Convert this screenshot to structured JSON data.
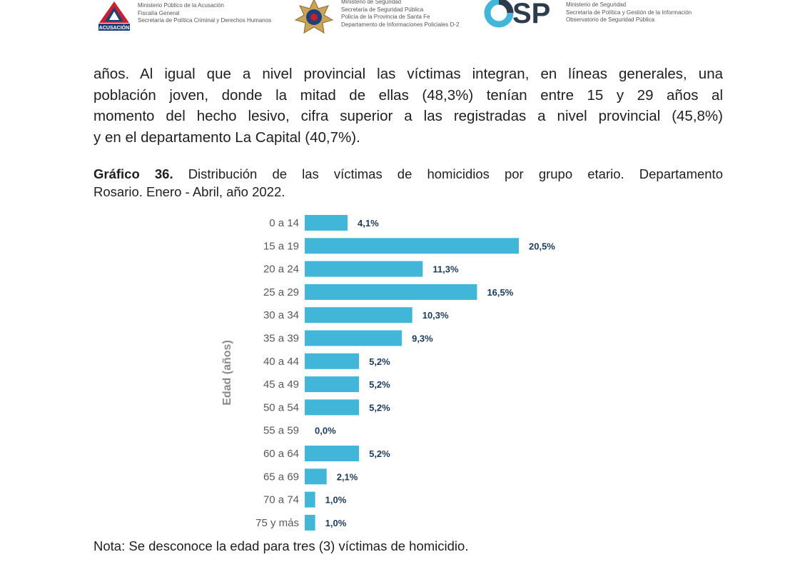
{
  "header": {
    "org1": {
      "logo_text": "ACUSACIÓN",
      "lines": [
        "Ministerio Público de la Acusación",
        "Fiscalía General",
        "Secretaría de Política Criminal y Derechos Humanos"
      ]
    },
    "org2": {
      "lines": [
        "Ministerio de Seguridad",
        "Secretaría de Seguridad Pública",
        "Policía de la Provincia de Santa Fe",
        "Departamento de Informaciones Policiales D-2"
      ]
    },
    "org3": {
      "logo_text": "OSP",
      "lines": [
        "Ministerio de Seguridad",
        "Secretaría de Política y Gestión de la Información",
        "Observatorio de Seguridad Pública"
      ]
    }
  },
  "paragraph": {
    "lines": [
      "años. Al igual que a nivel provincial las víctimas integran, en líneas generales, una",
      "población joven, donde la mitad de ellas (48,3%) tenían entre 15 y 29 años al",
      "momento del hecho lesivo, cifra superior a las registradas a nivel provincial (45,8%)",
      "y en el departamento La Capital (40,7%)."
    ]
  },
  "caption": {
    "label": "Gráfico 36.",
    "line1": " Distribución de las víctimas de homicidios por grupo etario. Departamento",
    "line2": "Rosario. Enero - Abril, año 2022."
  },
  "chart_data": {
    "type": "bar",
    "orientation": "horizontal",
    "ylabel": "Edad (años)",
    "categories": [
      "0 a 14",
      "15 a 19",
      "20 a 24",
      "25 a 29",
      "30 a 34",
      "35 a 39",
      "40 a 44",
      "45 a 49",
      "50 a 54",
      "55 a 59",
      "60 a 64",
      "65 a 69",
      "70 a 74",
      "75 y más"
    ],
    "values": [
      4.1,
      20.5,
      11.3,
      16.5,
      10.3,
      9.3,
      5.2,
      5.2,
      5.2,
      0.0,
      5.2,
      2.1,
      1.0,
      1.0
    ],
    "data_labels": [
      "4,1%",
      "20,5%",
      "11,3%",
      "16,5%",
      "10,3%",
      "9,3%",
      "5,2%",
      "5,2%",
      "5,2%",
      "0,0%",
      "5,2%",
      "2,1%",
      "1,0%",
      "1,0%"
    ],
    "bar_color": "#41b6d9",
    "label_color": "#1b3a5c",
    "grid": false,
    "xlim": [
      0,
      20.5
    ]
  },
  "note": "Nota: Se desconoce la edad para tres (3) víctimas de homicidio."
}
